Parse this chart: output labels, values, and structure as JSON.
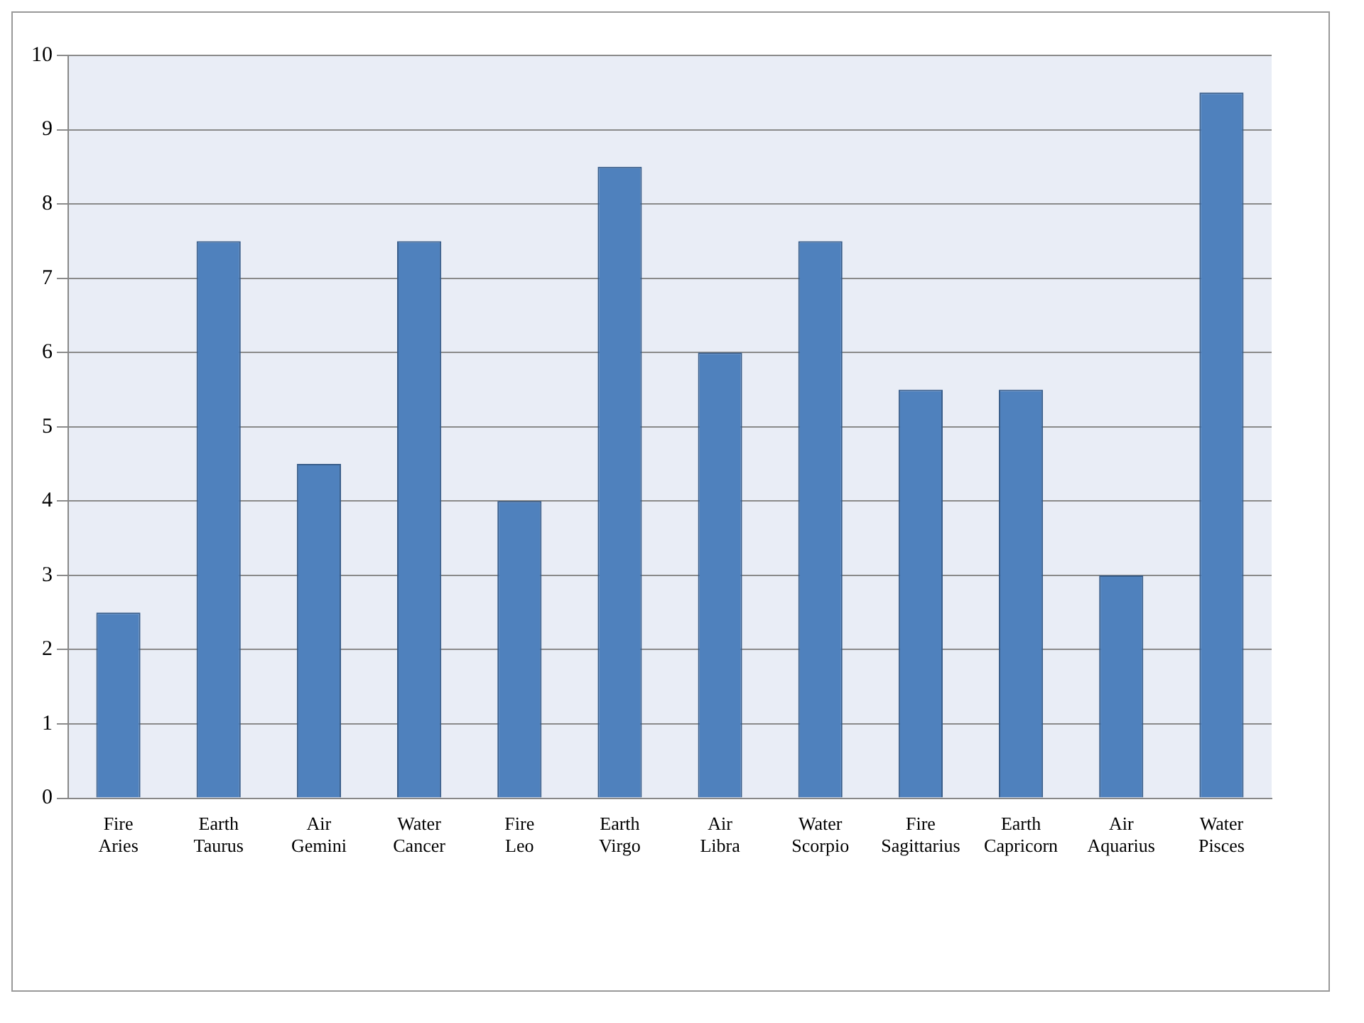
{
  "chart_data": {
    "type": "bar",
    "categories": [
      "Fire\nAries",
      "Earth\nTaurus",
      "Air\nGemini",
      "Water\nCancer",
      "Fire\nLeo",
      "Earth\nVirgo",
      "Air\nLibra",
      "Water\nScorpio",
      "Fire\nSagittarius",
      "Earth\nCapricorn",
      "Air\nAquarius",
      "Water\nPisces"
    ],
    "values": [
      2.5,
      7.5,
      4.5,
      7.5,
      4,
      8.5,
      6,
      7.5,
      5.5,
      5.5,
      3,
      9.5
    ],
    "color": "#4f81bd",
    "ylim": [
      0,
      10
    ],
    "yticks": [
      0,
      1,
      2,
      3,
      4,
      5,
      6,
      7,
      8,
      9,
      10
    ],
    "grid": "y"
  }
}
